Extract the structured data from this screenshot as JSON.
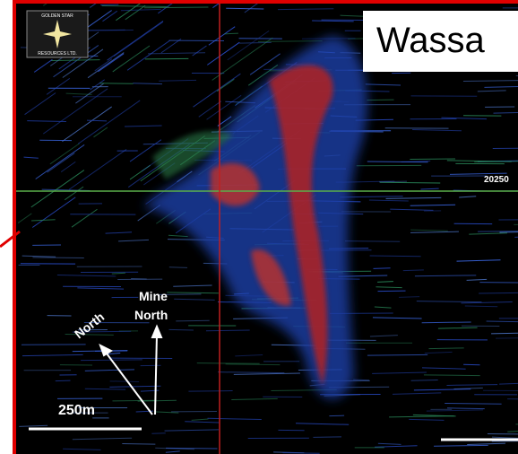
{
  "logo": {
    "line1": "GOLDEN STAR",
    "line2": "RESOURCES LTD."
  },
  "title": "Wassa",
  "grid_label": "20250",
  "north_arrow": {
    "mine_label_1": "Mine",
    "mine_label_2": "North",
    "true_label": "North"
  },
  "scale_bar": {
    "label": "250m"
  }
}
